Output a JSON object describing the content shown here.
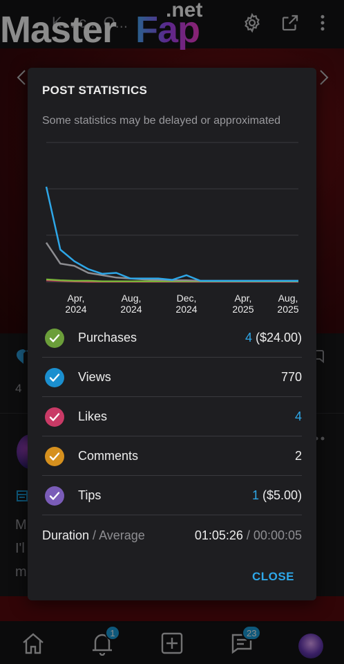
{
  "background": {
    "title_partial": "K... c... O...",
    "peek_count": "4",
    "peek_text": [
      "M",
      "I'l",
      "m"
    ],
    "nav": {
      "notifications_badge": "1",
      "messages_badge": "23"
    }
  },
  "watermark": {
    "master": "Master",
    "fap": "Fap",
    "net": ".net"
  },
  "dialog": {
    "title": "POST STATISTICS",
    "subtitle": "Some statistics may be delayed or approximated",
    "close_label": "CLOSE"
  },
  "chart_data": {
    "type": "line",
    "x_tick_labels": [
      [
        "Apr,",
        "2024"
      ],
      [
        "Aug,",
        "2024"
      ],
      [
        "Dec,",
        "2024"
      ],
      [
        "Apr,",
        "2025"
      ],
      [
        "Aug,",
        "2025"
      ]
    ],
    "ylim": [
      0,
      300
    ],
    "grid": true,
    "legend": "none",
    "series": [
      {
        "color": "#2ea7e8",
        "values": [
          205,
          70,
          45,
          28,
          18,
          20,
          8,
          8,
          8,
          5,
          15,
          3,
          3,
          3,
          3,
          3,
          3,
          3,
          3
        ]
      },
      {
        "color": "#8e8e92",
        "values": [
          85,
          40,
          35,
          20,
          15,
          10,
          8,
          6,
          5,
          4,
          4,
          3,
          3,
          3,
          3,
          3,
          3,
          3,
          3
        ]
      },
      {
        "color": "#7bb33a",
        "values": [
          6,
          4,
          3,
          3,
          2,
          2,
          2,
          2,
          2,
          2,
          2,
          2,
          2,
          2,
          2,
          2,
          2,
          2,
          2
        ]
      },
      {
        "color": "#d63a6a",
        "values": [
          4,
          3,
          2,
          1,
          1,
          1,
          1,
          1,
          1,
          1,
          1,
          1,
          1,
          1,
          1,
          1,
          1,
          1,
          1
        ]
      }
    ]
  },
  "stats": [
    {
      "label": "Purchases",
      "count": "4",
      "amount": " ($24.00)",
      "count_link": true,
      "color": "#6b9e3a"
    },
    {
      "label": "Views",
      "count": "770",
      "amount": "",
      "count_link": false,
      "color": "#1b8fcf"
    },
    {
      "label": "Likes",
      "count": "4",
      "amount": "",
      "count_link": true,
      "color": "#c93a66"
    },
    {
      "label": "Comments",
      "count": "2",
      "amount": "",
      "count_link": false,
      "color": "#d6901e"
    },
    {
      "label": "Tips",
      "count": "1",
      "amount": " ($5.00)",
      "count_link": true,
      "color": "#7a5cb8"
    }
  ],
  "duration": {
    "label": "Duration",
    "label_sep": " / ",
    "label_secondary": "Average",
    "total": "01:05:26",
    "value_sep": " / ",
    "average": "00:00:05"
  }
}
